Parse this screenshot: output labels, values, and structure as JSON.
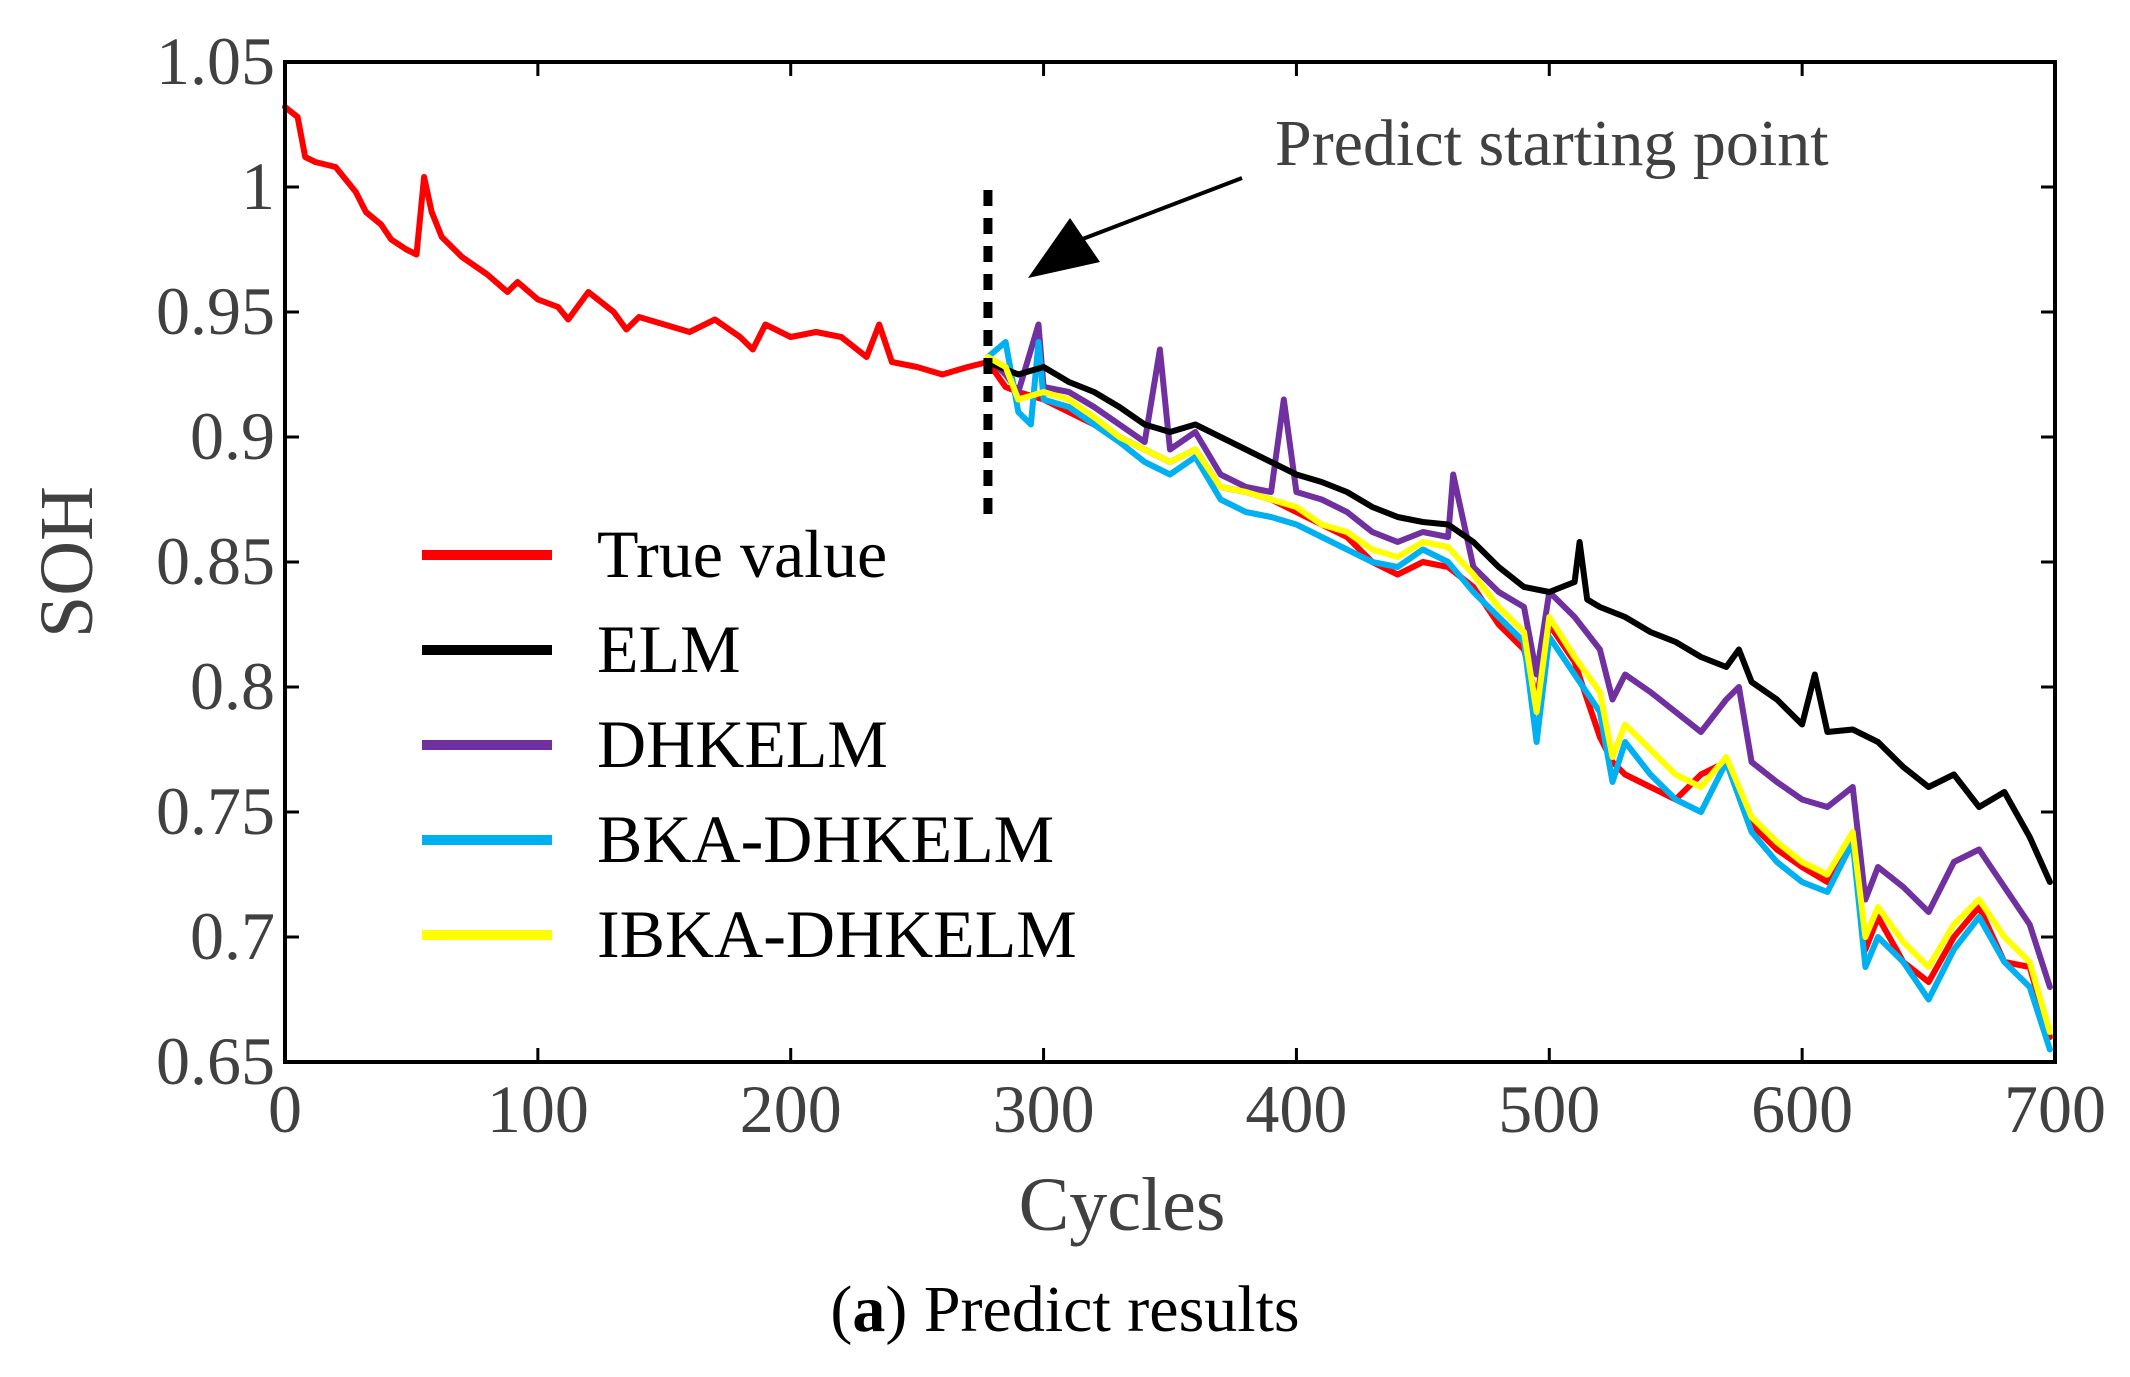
{
  "chart_data": {
    "type": "line",
    "title": "",
    "xlabel": "Cycles",
    "ylabel": "SOH",
    "xlim": [
      0,
      700
    ],
    "ylim": [
      0.65,
      1.05
    ],
    "xticks": [
      0,
      100,
      200,
      300,
      400,
      500,
      600,
      700
    ],
    "yticks": [
      0.65,
      0.7,
      0.75,
      0.8,
      0.85,
      0.9,
      0.95,
      1,
      1.05
    ],
    "xtick_labels": [
      "0",
      "100",
      "200",
      "300",
      "400",
      "500",
      "600",
      "700"
    ],
    "ytick_labels": [
      "0.65",
      "0.7",
      "0.75",
      "0.8",
      "0.85",
      "0.9",
      "0.95",
      "1",
      "1.05"
    ],
    "predict_start_cycle": 278,
    "annotation": "Predict starting point",
    "legend_position": "center-left",
    "series": [
      {
        "name": "True value",
        "color": "#ff0000",
        "x": [
          0,
          5,
          8,
          12,
          20,
          28,
          32,
          38,
          42,
          48,
          52,
          55,
          58,
          62,
          70,
          80,
          88,
          92,
          100,
          108,
          112,
          120,
          130,
          135,
          140,
          150,
          160,
          170,
          180,
          185,
          190,
          200,
          210,
          220,
          230,
          235,
          240,
          250,
          260,
          270,
          278,
          285,
          290,
          300,
          310,
          320,
          330,
          340,
          350,
          360,
          370,
          380,
          390,
          400,
          410,
          420,
          430,
          440,
          450,
          460,
          470,
          480,
          490,
          495,
          500,
          510,
          515,
          520,
          525,
          530,
          540,
          550,
          560,
          570,
          580,
          590,
          600,
          610,
          620,
          625,
          630,
          640,
          650,
          660,
          670,
          680,
          690,
          698
        ],
        "values": [
          1.032,
          1.028,
          1.012,
          1.01,
          1.008,
          0.998,
          0.99,
          0.985,
          0.979,
          0.975,
          0.973,
          1.004,
          0.99,
          0.98,
          0.972,
          0.965,
          0.958,
          0.962,
          0.955,
          0.952,
          0.947,
          0.958,
          0.95,
          0.943,
          0.948,
          0.945,
          0.942,
          0.947,
          0.94,
          0.935,
          0.945,
          0.94,
          0.942,
          0.94,
          0.932,
          0.945,
          0.93,
          0.928,
          0.925,
          0.928,
          0.93,
          0.92,
          0.918,
          0.915,
          0.91,
          0.905,
          0.9,
          0.895,
          0.89,
          0.895,
          0.88,
          0.878,
          0.875,
          0.87,
          0.865,
          0.86,
          0.85,
          0.845,
          0.85,
          0.848,
          0.84,
          0.825,
          0.815,
          0.795,
          0.825,
          0.81,
          0.795,
          0.78,
          0.77,
          0.765,
          0.76,
          0.755,
          0.765,
          0.77,
          0.745,
          0.735,
          0.728,
          0.722,
          0.74,
          0.695,
          0.708,
          0.69,
          0.682,
          0.7,
          0.712,
          0.69,
          0.688,
          0.66
        ]
      },
      {
        "name": "ELM",
        "color": "#000000",
        "x": [
          278,
          290,
          300,
          310,
          320,
          330,
          340,
          350,
          360,
          370,
          380,
          390,
          400,
          410,
          420,
          430,
          440,
          450,
          460,
          470,
          480,
          490,
          500,
          510,
          512,
          515,
          520,
          530,
          540,
          550,
          560,
          570,
          575,
          580,
          590,
          600,
          605,
          610,
          620,
          630,
          640,
          650,
          660,
          670,
          680,
          690,
          698
        ],
        "values": [
          0.93,
          0.925,
          0.928,
          0.922,
          0.918,
          0.912,
          0.905,
          0.902,
          0.905,
          0.9,
          0.895,
          0.89,
          0.885,
          0.882,
          0.878,
          0.872,
          0.868,
          0.866,
          0.865,
          0.858,
          0.848,
          0.84,
          0.838,
          0.842,
          0.858,
          0.835,
          0.832,
          0.828,
          0.822,
          0.818,
          0.812,
          0.808,
          0.815,
          0.802,
          0.795,
          0.785,
          0.805,
          0.782,
          0.783,
          0.778,
          0.768,
          0.76,
          0.765,
          0.752,
          0.758,
          0.74,
          0.722
        ]
      },
      {
        "name": "DHKELM",
        "color": "#7030a0",
        "x": [
          278,
          285,
          290,
          298,
          300,
          310,
          320,
          330,
          340,
          346,
          350,
          360,
          370,
          380,
          390,
          395,
          400,
          410,
          420,
          430,
          440,
          450,
          460,
          462,
          470,
          480,
          490,
          495,
          500,
          510,
          520,
          525,
          530,
          540,
          550,
          560,
          570,
          575,
          580,
          590,
          600,
          610,
          620,
          625,
          630,
          640,
          650,
          660,
          670,
          680,
          690,
          698
        ],
        "values": [
          0.932,
          0.925,
          0.918,
          0.945,
          0.92,
          0.918,
          0.912,
          0.905,
          0.898,
          0.935,
          0.895,
          0.902,
          0.885,
          0.88,
          0.878,
          0.915,
          0.878,
          0.875,
          0.87,
          0.862,
          0.858,
          0.862,
          0.86,
          0.885,
          0.848,
          0.838,
          0.832,
          0.805,
          0.838,
          0.828,
          0.815,
          0.795,
          0.805,
          0.798,
          0.79,
          0.782,
          0.795,
          0.8,
          0.77,
          0.762,
          0.755,
          0.752,
          0.76,
          0.715,
          0.728,
          0.72,
          0.71,
          0.73,
          0.735,
          0.72,
          0.705,
          0.68
        ]
      },
      {
        "name": "BKA-DHKELM",
        "color": "#00b0f0",
        "x": [
          278,
          285,
          290,
          295,
          298,
          300,
          310,
          320,
          330,
          340,
          350,
          360,
          370,
          380,
          390,
          400,
          410,
          420,
          430,
          440,
          450,
          460,
          470,
          480,
          490,
          495,
          500,
          510,
          520,
          525,
          530,
          540,
          550,
          560,
          570,
          580,
          590,
          600,
          610,
          620,
          625,
          630,
          640,
          650,
          660,
          670,
          680,
          690,
          698
        ],
        "values": [
          0.932,
          0.938,
          0.91,
          0.905,
          0.938,
          0.915,
          0.912,
          0.905,
          0.898,
          0.89,
          0.885,
          0.892,
          0.875,
          0.87,
          0.868,
          0.865,
          0.86,
          0.855,
          0.85,
          0.848,
          0.855,
          0.85,
          0.838,
          0.828,
          0.818,
          0.778,
          0.82,
          0.805,
          0.79,
          0.762,
          0.778,
          0.765,
          0.755,
          0.75,
          0.77,
          0.742,
          0.73,
          0.722,
          0.718,
          0.738,
          0.688,
          0.7,
          0.69,
          0.675,
          0.695,
          0.708,
          0.69,
          0.68,
          0.655
        ]
      },
      {
        "name": "IBKA-DHKELM",
        "color": "#ffff00",
        "x": [
          278,
          285,
          290,
          300,
          310,
          320,
          330,
          340,
          350,
          360,
          370,
          380,
          390,
          400,
          410,
          420,
          430,
          440,
          450,
          460,
          470,
          480,
          490,
          495,
          500,
          510,
          520,
          525,
          530,
          540,
          550,
          560,
          570,
          580,
          590,
          600,
          610,
          620,
          625,
          630,
          640,
          650,
          660,
          670,
          680,
          690,
          698
        ],
        "values": [
          0.932,
          0.928,
          0.915,
          0.918,
          0.915,
          0.908,
          0.9,
          0.895,
          0.89,
          0.895,
          0.88,
          0.878,
          0.875,
          0.872,
          0.865,
          0.862,
          0.855,
          0.852,
          0.858,
          0.856,
          0.845,
          0.832,
          0.822,
          0.79,
          0.828,
          0.812,
          0.798,
          0.772,
          0.785,
          0.775,
          0.765,
          0.76,
          0.772,
          0.748,
          0.738,
          0.73,
          0.725,
          0.742,
          0.7,
          0.712,
          0.698,
          0.688,
          0.705,
          0.715,
          0.7,
          0.69,
          0.662
        ]
      }
    ]
  },
  "caption": {
    "label": "a",
    "text": "Predict results"
  }
}
